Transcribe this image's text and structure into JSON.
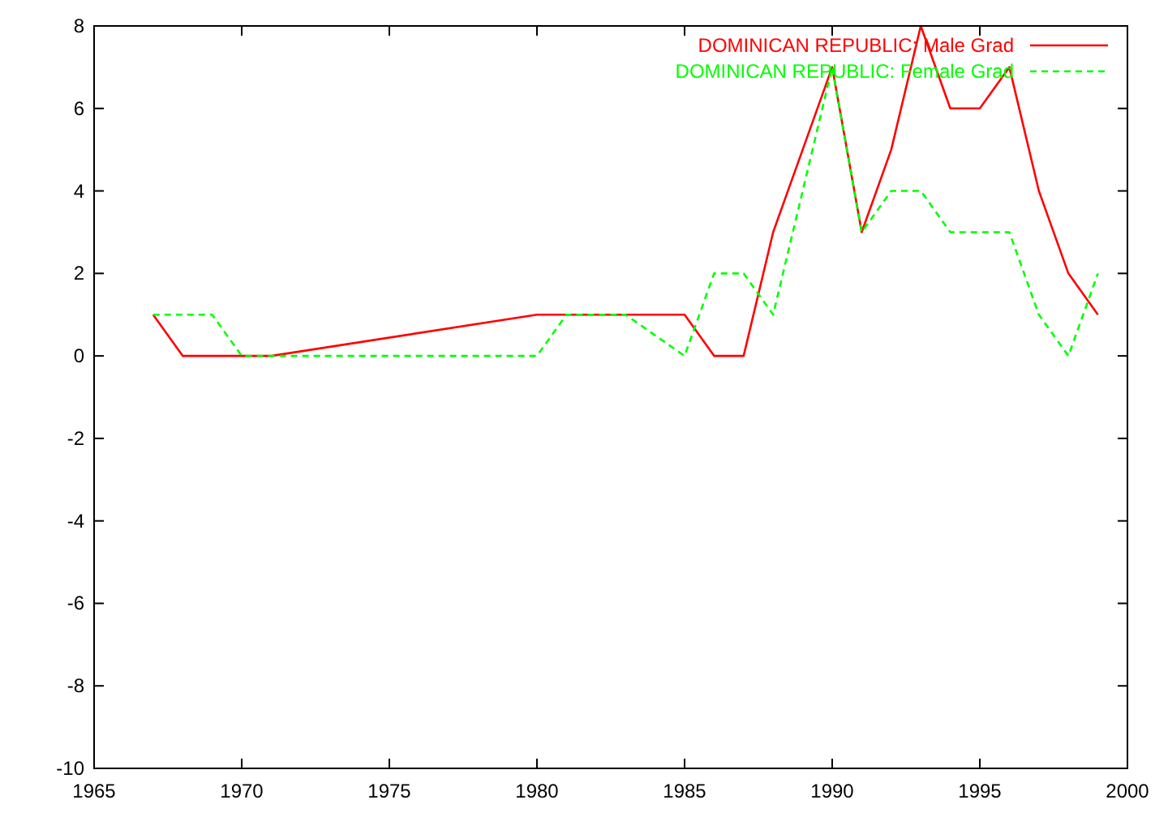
{
  "chart_data": {
    "type": "line",
    "xlim": [
      1965,
      2000
    ],
    "xticks": [
      1965,
      1970,
      1975,
      1980,
      1985,
      1990,
      1995,
      2000
    ],
    "ylim": [
      -10,
      8
    ],
    "yticks": [
      -10,
      -8,
      -6,
      -4,
      -2,
      0,
      2,
      4,
      6,
      8
    ],
    "grid": false,
    "legend": "top right",
    "series": [
      {
        "name": "DOMINICAN REPUBLIC: Male Grad",
        "color": "#ff0000",
        "line_style": "solid",
        "x": [
          1967,
          1968,
          1969,
          1970,
          1971,
          1980,
          1981,
          1982,
          1983,
          1984,
          1985,
          1986,
          1987,
          1988,
          1990,
          1991,
          1992,
          1993,
          1994,
          1995,
          1996,
          1997,
          1998,
          1999
        ],
        "values": [
          1,
          0,
          0,
          0,
          0,
          1,
          1,
          1,
          1,
          1,
          1,
          0,
          0,
          3,
          7,
          3,
          5,
          8,
          6,
          6,
          7,
          4,
          2,
          1
        ]
      },
      {
        "name": "DOMINICAN REPUBLIC: Female Grad",
        "color": "#00ff00",
        "line_style": "dashed",
        "x": [
          1967,
          1968,
          1969,
          1970,
          1971,
          1980,
          1981,
          1982,
          1983,
          1985,
          1986,
          1987,
          1988,
          1990,
          1991,
          1992,
          1993,
          1994,
          1995,
          1996,
          1997,
          1998,
          1999
        ],
        "values": [
          1,
          1,
          1,
          0,
          0,
          0,
          1,
          1,
          1,
          0,
          2,
          2,
          1,
          7,
          3,
          4,
          4,
          3,
          3,
          3,
          1,
          0,
          2
        ]
      }
    ]
  }
}
